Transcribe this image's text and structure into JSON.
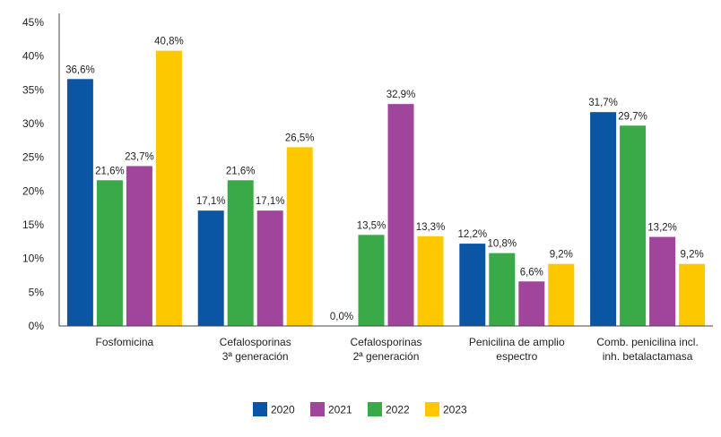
{
  "chart_data": {
    "type": "bar",
    "categories": [
      [
        "Fosfomicina"
      ],
      [
        "Cefalosporinas",
        "3ª generación"
      ],
      [
        "Cefalosporinas",
        "2ª generación"
      ],
      [
        "Penicilina de amplio",
        "espectro"
      ],
      [
        "Comb. penicilina incl.",
        "inh. betalactamasa"
      ]
    ],
    "series_order_in_groups": [
      "2020",
      "2022",
      "2021",
      "2023"
    ],
    "series": [
      {
        "name": "2020",
        "color": "#0b55a5",
        "values": [
          36.6,
          17.1,
          0.0,
          12.2,
          31.7
        ],
        "labels": [
          "36,6%",
          "17,1%",
          "0,0%",
          "12,2%",
          "31,7%"
        ]
      },
      {
        "name": "2021",
        "color": "#a1449c",
        "values": [
          23.7,
          17.1,
          32.9,
          6.6,
          13.2
        ],
        "labels": [
          "23,7%",
          "17,1%",
          "32,9%",
          "6,6%",
          "13,2%"
        ]
      },
      {
        "name": "2022",
        "color": "#3aaa49",
        "values": [
          21.6,
          21.6,
          13.5,
          10.8,
          29.7
        ],
        "labels": [
          "21,6%",
          "21,6%",
          "13,5%",
          "10,8%",
          "29,7%"
        ]
      },
      {
        "name": "2023",
        "color": "#fdc800",
        "values": [
          40.8,
          26.5,
          13.3,
          9.2,
          9.2
        ],
        "labels": [
          "40,8%",
          "26,5%",
          "13,3%",
          "9,2%",
          "9,2%"
        ]
      }
    ],
    "legend_order": [
      "2020",
      "2021",
      "2022",
      "2023"
    ],
    "yticks": [
      0,
      5,
      10,
      15,
      20,
      25,
      30,
      35,
      40,
      45
    ],
    "ytick_labels": [
      "0%",
      "5%",
      "10%",
      "15%",
      "20%",
      "25%",
      "30%",
      "35%",
      "40%",
      "45%"
    ],
    "ylim": [
      0,
      45
    ],
    "grid": false,
    "legend_position": "bottom-center",
    "title": "",
    "xlabel": "",
    "ylabel": ""
  }
}
